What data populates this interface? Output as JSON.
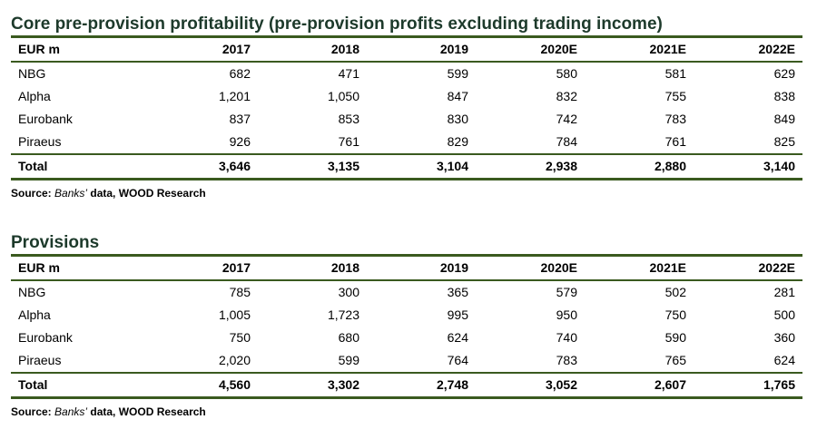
{
  "table1": {
    "title": "Core pre-provision profitability (pre-provision profits excluding trading income)",
    "headers": [
      "EUR m",
      "2017",
      "2018",
      "2019",
      "2020E",
      "2021E",
      "2022E"
    ],
    "rows": [
      [
        "NBG",
        "682",
        "471",
        "599",
        "580",
        "581",
        "629"
      ],
      [
        "Alpha",
        "1,201",
        "1,050",
        "847",
        "832",
        "755",
        "838"
      ],
      [
        "Eurobank",
        "837",
        "853",
        "830",
        "742",
        "783",
        "849"
      ],
      [
        "Piraeus",
        "926",
        "761",
        "829",
        "784",
        "761",
        "825"
      ]
    ],
    "total": [
      "Total",
      "3,646",
      "3,135",
      "3,104",
      "2,938",
      "2,880",
      "3,140"
    ],
    "source_prefix": "Source: ",
    "source_italic": "Banks’",
    "source_suffix": " data, WOOD Research"
  },
  "table2": {
    "title": "Provisions",
    "headers": [
      "EUR m",
      "2017",
      "2018",
      "2019",
      "2020E",
      "2021E",
      "2022E"
    ],
    "rows": [
      [
        "NBG",
        "785",
        "300",
        "365",
        "579",
        "502",
        "281"
      ],
      [
        "Alpha",
        "1,005",
        "1,723",
        "995",
        "950",
        "750",
        "500"
      ],
      [
        "Eurobank",
        "750",
        "680",
        "624",
        "740",
        "590",
        "360"
      ],
      [
        "Piraeus",
        "2,020",
        "599",
        "764",
        "783",
        "765",
        "624"
      ]
    ],
    "total": [
      "Total",
      "4,560",
      "3,302",
      "2,748",
      "3,052",
      "2,607",
      "1,765"
    ],
    "source_prefix": "Source: ",
    "source_italic": "Banks’",
    "source_suffix": " data, WOOD Research"
  }
}
